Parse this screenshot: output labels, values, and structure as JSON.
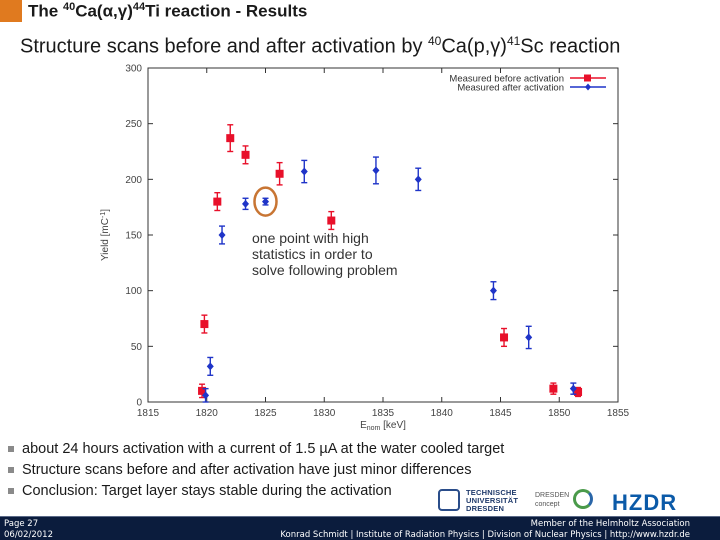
{
  "slide": {
    "title_pre": "The ",
    "title_sup1": "40",
    "title_mid": "Ca(α,γ)",
    "title_sup2": "44",
    "title_post": "Ti reaction - Results",
    "subtitle_pre": "Structure scans before and after activation by ",
    "subtitle_sup1": "40",
    "subtitle_mid": "Ca(p,γ)",
    "subtitle_sup2": "41",
    "subtitle_post": "Sc reaction",
    "accent_color": "#e07a1f"
  },
  "chart_data": {
    "type": "scatter",
    "xlabel": "E",
    "xlabel_sub": "nom",
    "xlabel_unit": " [keV]",
    "ylabel": "Yield [mC",
    "ylabel_sup": "-1",
    "ylabel_end": "]",
    "xlim": [
      1815,
      1855
    ],
    "ylim": [
      0,
      300
    ],
    "xticks": [
      "1815",
      "1820",
      "1825",
      "1830",
      "1835",
      "1840",
      "1845",
      "1850",
      "1855"
    ],
    "yticks": [
      "0",
      "50",
      "100",
      "150",
      "200",
      "250",
      "300"
    ],
    "grid": false,
    "legend_position": "top-right",
    "series": [
      {
        "name": "Measured before activation",
        "color": "#e8102a",
        "marker": "square",
        "x": [
          1819.6,
          1819.8,
          1820.9,
          1822.0,
          1823.3,
          1826.2,
          1830.6,
          1845.3,
          1849.5,
          1851.6
        ],
        "y": [
          10,
          70,
          180,
          237,
          222,
          205,
          163,
          58,
          12,
          9
        ],
        "err": [
          6,
          8,
          8,
          12,
          8,
          10,
          8,
          8,
          5,
          4
        ]
      },
      {
        "name": "Measured after activation",
        "color": "#1f34c8",
        "marker": "diamond",
        "x": [
          1819.9,
          1820.3,
          1821.3,
          1823.3,
          1825.0,
          1828.3,
          1834.4,
          1838.0,
          1844.4,
          1847.4,
          1851.2
        ],
        "y": [
          6,
          32,
          150,
          178,
          180,
          207,
          208,
          200,
          100,
          58,
          12
        ],
        "err": [
          6,
          8,
          8,
          5,
          3,
          10,
          12,
          10,
          8,
          10,
          5
        ]
      }
    ],
    "highlight": {
      "x": 1825.0,
      "y": 180,
      "color": "#c87533"
    },
    "annotation": "one point with high statistics in order to solve following problem"
  },
  "bullets": [
    "about 24 hours activation with a current of 1.5 µA at the water cooled target",
    "Structure scans before and after activation have just minor differences",
    "Conclusion: Target layer stays stable during the activation"
  ],
  "footer": {
    "page": "Page 27",
    "date": "06/02/2012",
    "member": "Member of the Helmholtz Association",
    "credits": "Konrad Schmidt | Institute of Radiation Physics | Division of Nuclear Physics | http://www.hzdr.de",
    "bar_color": "#0b1c3d"
  },
  "logos": {
    "tud_line1": "TECHNISCHE",
    "tud_line2": "UNIVERSITÄT",
    "tud_line3": "DRESDEN",
    "dc_line1": "DRESDEN",
    "dc_line2": "concept",
    "hzdr": "HZDR"
  }
}
